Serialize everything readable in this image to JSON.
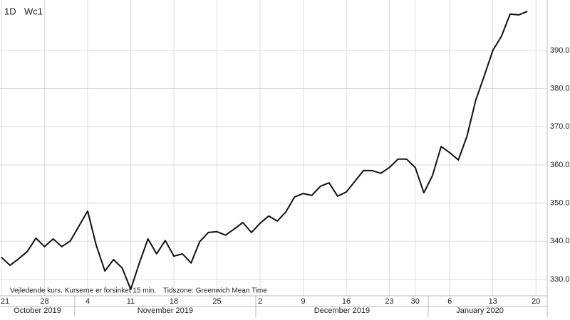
{
  "chart_data": {
    "type": "line",
    "interval": "1D",
    "symbol": "Wc1",
    "disclaimer": "Vejledende kurs. Kurserne er forsinket 15 min.",
    "timezone": "Tidszone: Greenwich Mean Time",
    "x": [
      "2019-10-21",
      "2019-10-22",
      "2019-10-23",
      "2019-10-24",
      "2019-10-25",
      "2019-10-28",
      "2019-10-29",
      "2019-10-30",
      "2019-10-31",
      "2019-11-01",
      "2019-11-04",
      "2019-11-05",
      "2019-11-06",
      "2019-11-07",
      "2019-11-08",
      "2019-11-11",
      "2019-11-12",
      "2019-11-13",
      "2019-11-14",
      "2019-11-15",
      "2019-11-18",
      "2019-11-19",
      "2019-11-20",
      "2019-11-21",
      "2019-11-22",
      "2019-11-25",
      "2019-11-26",
      "2019-11-27",
      "2019-11-28",
      "2019-11-29",
      "2019-12-02",
      "2019-12-03",
      "2019-12-04",
      "2019-12-05",
      "2019-12-06",
      "2019-12-09",
      "2019-12-10",
      "2019-12-11",
      "2019-12-12",
      "2019-12-13",
      "2019-12-16",
      "2019-12-17",
      "2019-12-18",
      "2019-12-19",
      "2019-12-20",
      "2019-12-23",
      "2019-12-24",
      "2019-12-27",
      "2019-12-30",
      "2019-12-31",
      "2020-01-02",
      "2020-01-03",
      "2020-01-06",
      "2020-01-07",
      "2020-01-08",
      "2020-01-09",
      "2020-01-10",
      "2020-01-13",
      "2020-01-14",
      "2020-01-15",
      "2020-01-16",
      "2020-01-17"
    ],
    "series": [
      {
        "color": "#111111",
        "values": [
          335.8,
          333.7,
          335.4,
          337.3,
          340.8,
          338.6,
          340.6,
          338.6,
          340.1,
          344.0,
          347.9,
          338.9,
          332.2,
          335.2,
          333.0,
          327.4,
          334.3,
          340.6,
          336.7,
          340.2,
          336.1,
          336.7,
          334.3,
          339.9,
          342.3,
          342.5,
          341.6,
          343.2,
          344.9,
          342.3,
          344.7,
          346.6,
          345.3,
          347.7,
          351.6,
          352.5,
          352.0,
          354.4,
          355.3,
          351.8,
          352.9,
          355.7,
          358.5,
          358.5,
          357.8,
          359.3,
          361.5,
          361.5,
          359.3,
          352.7,
          357.2,
          364.8,
          363.2,
          361.3,
          367.5,
          376.8,
          383.3,
          390.0,
          393.7,
          399.5,
          399.3,
          400.2
        ]
      }
    ],
    "ylim": [
      325.7,
      403.2
    ],
    "yticks": [
      {
        "value": 330,
        "label": "330.0"
      },
      {
        "value": 340,
        "label": "340.0"
      },
      {
        "value": 350,
        "label": "350.0"
      },
      {
        "value": 360,
        "label": "360.0"
      },
      {
        "value": 370,
        "label": "370.0"
      },
      {
        "value": 380,
        "label": "380.0"
      },
      {
        "value": 390,
        "label": "390.0"
      }
    ],
    "xticks": [
      {
        "value": "2019-10-21",
        "label": "21"
      },
      {
        "value": "2019-10-28",
        "label": "28"
      },
      {
        "value": "2019-11-04",
        "label": "4"
      },
      {
        "value": "2019-11-11",
        "label": "11"
      },
      {
        "value": "2019-11-18",
        "label": "18"
      },
      {
        "value": "2019-11-25",
        "label": "25"
      },
      {
        "value": "2019-12-02",
        "label": "2"
      },
      {
        "value": "2019-12-09",
        "label": "9"
      },
      {
        "value": "2019-12-16",
        "label": "16"
      },
      {
        "value": "2019-12-23",
        "label": "23"
      },
      {
        "value": "2019-12-30",
        "label": "30"
      },
      {
        "value": "2020-01-06",
        "label": "6"
      },
      {
        "value": "2020-01-13",
        "label": "13"
      },
      {
        "value": "2020-01-20",
        "label": "20"
      }
    ],
    "x_groups": [
      {
        "value": "2019-10",
        "label": "October 2019"
      },
      {
        "value": "2019-11",
        "label": "November 2019"
      },
      {
        "value": "2019-12",
        "label": "December 2019"
      },
      {
        "value": "2020-01",
        "label": "January 2020"
      }
    ],
    "grid": true
  }
}
